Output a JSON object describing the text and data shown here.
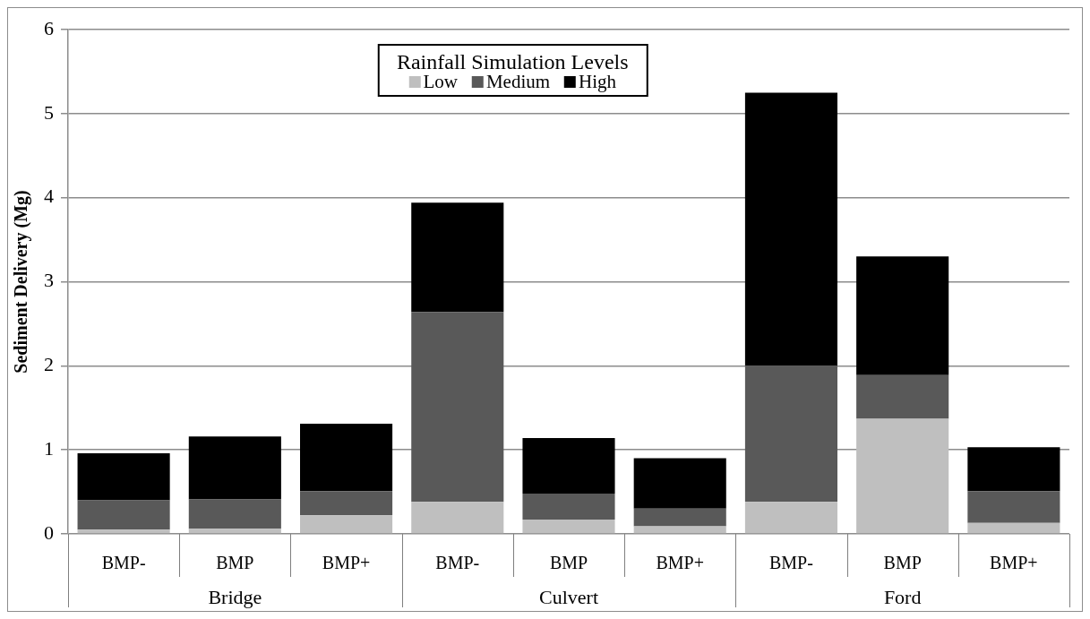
{
  "chart_data": {
    "type": "bar",
    "stacked": true,
    "ylabel": "Sediment Delivery (Mg)",
    "legend_title": "Rainfall Simulation Levels",
    "legend": "top",
    "categories": [
      "BMP-",
      "BMP",
      "BMP+",
      "BMP-",
      "BMP",
      "BMP+",
      "BMP-",
      "BMP",
      "BMP+"
    ],
    "series": [
      {
        "name": "Low",
        "color": "#bfbfbf",
        "values": [
          0.05,
          0.06,
          0.22,
          0.38,
          0.17,
          0.09,
          0.38,
          1.37,
          0.13
        ]
      },
      {
        "name": "Medium",
        "color": "#595959",
        "values": [
          0.35,
          0.35,
          0.29,
          2.26,
          0.31,
          0.21,
          1.62,
          0.52,
          0.38
        ]
      },
      {
        "name": "High",
        "color": "#000000",
        "values": [
          0.56,
          0.75,
          0.8,
          1.3,
          0.66,
          0.6,
          3.25,
          1.41,
          0.52
        ]
      }
    ],
    "ylim": [
      0,
      6
    ],
    "yticks": [
      0,
      1,
      2,
      3,
      4,
      5,
      6
    ],
    "grid": "y",
    "annotations": [
      "Bridge",
      "Culvert",
      "Ford"
    ]
  }
}
